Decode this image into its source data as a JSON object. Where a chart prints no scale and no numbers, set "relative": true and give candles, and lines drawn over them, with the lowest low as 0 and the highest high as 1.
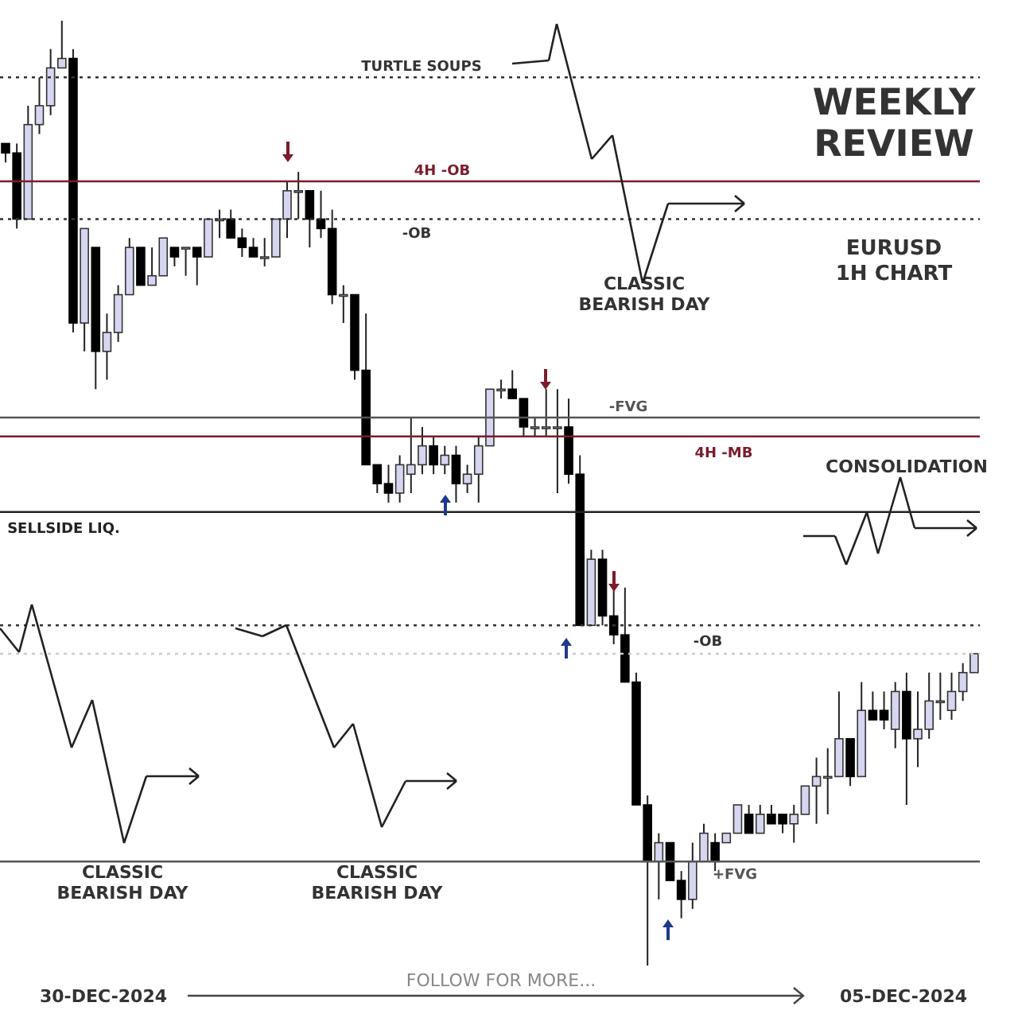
{
  "chart_data": {
    "type": "candlestick",
    "title": "WEEKLY\nREVIEW",
    "subtitle": "EURUSD\n1H CHART",
    "relative": true,
    "tick_labels": false,
    "categories": [
      null,
      null,
      null,
      null,
      null,
      null,
      null,
      null,
      null,
      null,
      null,
      null,
      null,
      null,
      null,
      null,
      null,
      null,
      null,
      null,
      null,
      null,
      null,
      null,
      null,
      null,
      null,
      null,
      null,
      null,
      null,
      null,
      null,
      null,
      null,
      null,
      null,
      null,
      null,
      null,
      null,
      null,
      null,
      null,
      null,
      null,
      null,
      null,
      null,
      null,
      null,
      null,
      null,
      null,
      null,
      null,
      null,
      null,
      null,
      null,
      null,
      null,
      null,
      null,
      null,
      null,
      null,
      null,
      null,
      null,
      null,
      null,
      null,
      null,
      null,
      null,
      null,
      null,
      null,
      null,
      null,
      null,
      null,
      null,
      null,
      null,
      null
    ],
    "ohlc": [
      [
        0.87,
        0.87,
        0.85,
        0.86
      ],
      [
        0.86,
        0.87,
        0.78,
        0.79
      ],
      [
        0.79,
        0.91,
        0.79,
        0.89
      ],
      [
        0.89,
        0.94,
        0.88,
        0.91
      ],
      [
        0.91,
        0.97,
        0.9,
        0.95
      ],
      [
        0.95,
        1,
        0.95,
        0.96
      ],
      [
        0.96,
        0.97,
        0.67,
        0.68
      ],
      [
        0.68,
        0.78,
        0.65,
        0.78
      ],
      [
        0.76,
        0.76,
        0.61,
        0.65
      ],
      [
        0.65,
        0.69,
        0.62,
        0.67
      ],
      [
        0.67,
        0.72,
        0.66,
        0.71
      ],
      [
        0.71,
        0.77,
        0.71,
        0.76
      ],
      [
        0.76,
        0.76,
        0.72,
        0.72
      ],
      [
        0.72,
        0.76,
        0.72,
        0.73
      ],
      [
        0.73,
        0.77,
        0.73,
        0.77
      ],
      [
        0.76,
        0.76,
        0.74,
        0.75
      ],
      [
        0.76,
        0.76,
        0.73,
        0.76
      ],
      [
        0.76,
        0.76,
        0.72,
        0.75
      ],
      [
        0.75,
        0.79,
        0.75,
        0.79
      ],
      [
        0.79,
        0.8,
        0.77,
        0.79
      ],
      [
        0.79,
        0.8,
        0.77,
        0.77
      ],
      [
        0.77,
        0.78,
        0.75,
        0.76
      ],
      [
        0.76,
        0.77,
        0.75,
        0.75
      ],
      [
        0.75,
        0.77,
        0.74,
        0.75
      ],
      [
        0.75,
        0.79,
        0.75,
        0.79
      ],
      [
        0.79,
        0.83,
        0.77,
        0.82
      ],
      [
        0.82,
        0.84,
        0.79,
        0.82
      ],
      [
        0.82,
        0.82,
        0.76,
        0.79
      ],
      [
        0.79,
        0.82,
        0.77,
        0.78
      ],
      [
        0.78,
        0.8,
        0.7,
        0.71
      ],
      [
        0.71,
        0.72,
        0.68,
        0.71
      ],
      [
        0.71,
        0.71,
        0.62,
        0.63
      ],
      [
        0.63,
        0.69,
        0.53,
        0.53
      ],
      [
        0.53,
        0.53,
        0.5,
        0.51
      ],
      [
        0.51,
        0.53,
        0.49,
        0.5
      ],
      [
        0.5,
        0.54,
        0.49,
        0.53
      ],
      [
        0.52,
        0.58,
        0.5,
        0.53
      ],
      [
        0.53,
        0.57,
        0.52,
        0.55
      ],
      [
        0.55,
        0.56,
        0.52,
        0.53
      ],
      [
        0.53,
        0.55,
        0.52,
        0.54
      ],
      [
        0.54,
        0.55,
        0.49,
        0.51
      ],
      [
        0.51,
        0.53,
        0.5,
        0.52
      ],
      [
        0.52,
        0.56,
        0.49,
        0.55
      ],
      [
        0.55,
        0.61,
        0.55,
        0.61
      ],
      [
        0.61,
        0.62,
        0.6,
        0.61
      ],
      [
        0.61,
        0.63,
        0.6,
        0.6
      ],
      [
        0.6,
        0.6,
        0.56,
        0.57
      ],
      [
        0.57,
        0.58,
        0.56,
        0.57
      ],
      [
        0.57,
        0.61,
        0.56,
        0.57
      ],
      [
        0.57,
        0.61,
        0.5,
        0.57
      ],
      [
        0.57,
        0.6,
        0.51,
        0.52
      ],
      [
        0.52,
        0.54,
        0.36,
        0.36
      ],
      [
        0.36,
        0.44,
        0.36,
        0.43
      ],
      [
        0.43,
        0.44,
        0.36,
        0.37
      ],
      [
        0.37,
        0.4,
        0.34,
        0.35
      ],
      [
        0.35,
        0.4,
        0.3,
        0.3
      ],
      [
        0.3,
        0.31,
        0.17,
        0.17
      ],
      [
        0.17,
        0.18,
        0,
        0.11
      ],
      [
        0.11,
        0.14,
        0.07,
        0.13
      ],
      [
        0.13,
        0.13,
        0.09,
        0.09
      ],
      [
        0.09,
        0.1,
        0.05,
        0.07
      ],
      [
        0.07,
        0.13,
        0.06,
        0.11
      ],
      [
        0.11,
        0.15,
        0.11,
        0.14
      ],
      [
        0.13,
        0.14,
        0.1,
        0.11
      ],
      [
        0.13,
        0.14,
        0.13,
        0.14
      ],
      [
        0.14,
        0.17,
        0.14,
        0.17
      ],
      [
        0.16,
        0.17,
        0.14,
        0.14
      ],
      [
        0.14,
        0.17,
        0.14,
        0.16
      ],
      [
        0.16,
        0.17,
        0.15,
        0.15
      ],
      [
        0.16,
        0.16,
        0.14,
        0.15
      ],
      [
        0.15,
        0.17,
        0.13,
        0.16
      ],
      [
        0.16,
        0.19,
        0.16,
        0.19
      ],
      [
        0.19,
        0.22,
        0.15,
        0.2
      ],
      [
        0.2,
        0.23,
        0.16,
        0.2
      ],
      [
        0.2,
        0.29,
        0.2,
        0.24
      ],
      [
        0.24,
        0.24,
        0.19,
        0.2
      ],
      [
        0.2,
        0.3,
        0.2,
        0.27
      ],
      [
        0.27,
        0.29,
        0.26,
        0.26
      ],
      [
        0.27,
        0.29,
        0.25,
        0.26
      ],
      [
        0.25,
        0.3,
        0.23,
        0.29
      ],
      [
        0.29,
        0.31,
        0.17,
        0.24
      ],
      [
        0.24,
        0.29,
        0.21,
        0.25
      ],
      [
        0.25,
        0.31,
        0.24,
        0.28
      ],
      [
        0.28,
        0.31,
        0.26,
        0.28
      ],
      [
        0.27,
        0.31,
        0.26,
        0.29
      ],
      [
        0.29,
        0.32,
        0.28,
        0.31
      ],
      [
        0.31,
        0.33,
        0.31,
        0.33
      ]
    ],
    "ref_lines": [
      {
        "axis": "y",
        "value": 0.94,
        "label": "TURTLE SOUPS",
        "color": "#333333",
        "line_style": "dotted"
      },
      {
        "axis": "y",
        "value": 0.83,
        "label": "4H -OB",
        "color": "#7b1c2c",
        "line_style": "solid"
      },
      {
        "axis": "y",
        "value": 0.79,
        "label": "-OB",
        "color": "#333333",
        "line_style": "dotted"
      },
      {
        "axis": "y",
        "value": 0.58,
        "label": "-FVG",
        "color": "#555555",
        "line_style": "solid"
      },
      {
        "axis": "y",
        "value": 0.56,
        "label": "4H -MB",
        "color": "#7b1c2c",
        "line_style": "solid"
      },
      {
        "axis": "y",
        "value": 0.48,
        "label": "SELLSIDE LIQ.",
        "color": "#222222",
        "line_style": "solid"
      },
      {
        "axis": "y",
        "value": 0.36,
        "label": "-OB",
        "color": "#333333",
        "line_style": "dotted"
      },
      {
        "axis": "y",
        "value": 0.11,
        "label": "+FVG",
        "color": "#555555",
        "line_style": "solid"
      },
      {
        "axis": "y",
        "value": 0.33,
        "color": "#cccccc",
        "line_style": "dotted"
      }
    ],
    "annotations": [
      "CLASSIC\nBEARISH DAY",
      "CLASSIC\nBEARISH DAY",
      "CLASSIC\nBEARISH DAY",
      "CONSOLIDATION",
      "30-DEC-2024",
      "FOLLOW FOR MORE...",
      "05-DEC-2024"
    ]
  }
}
